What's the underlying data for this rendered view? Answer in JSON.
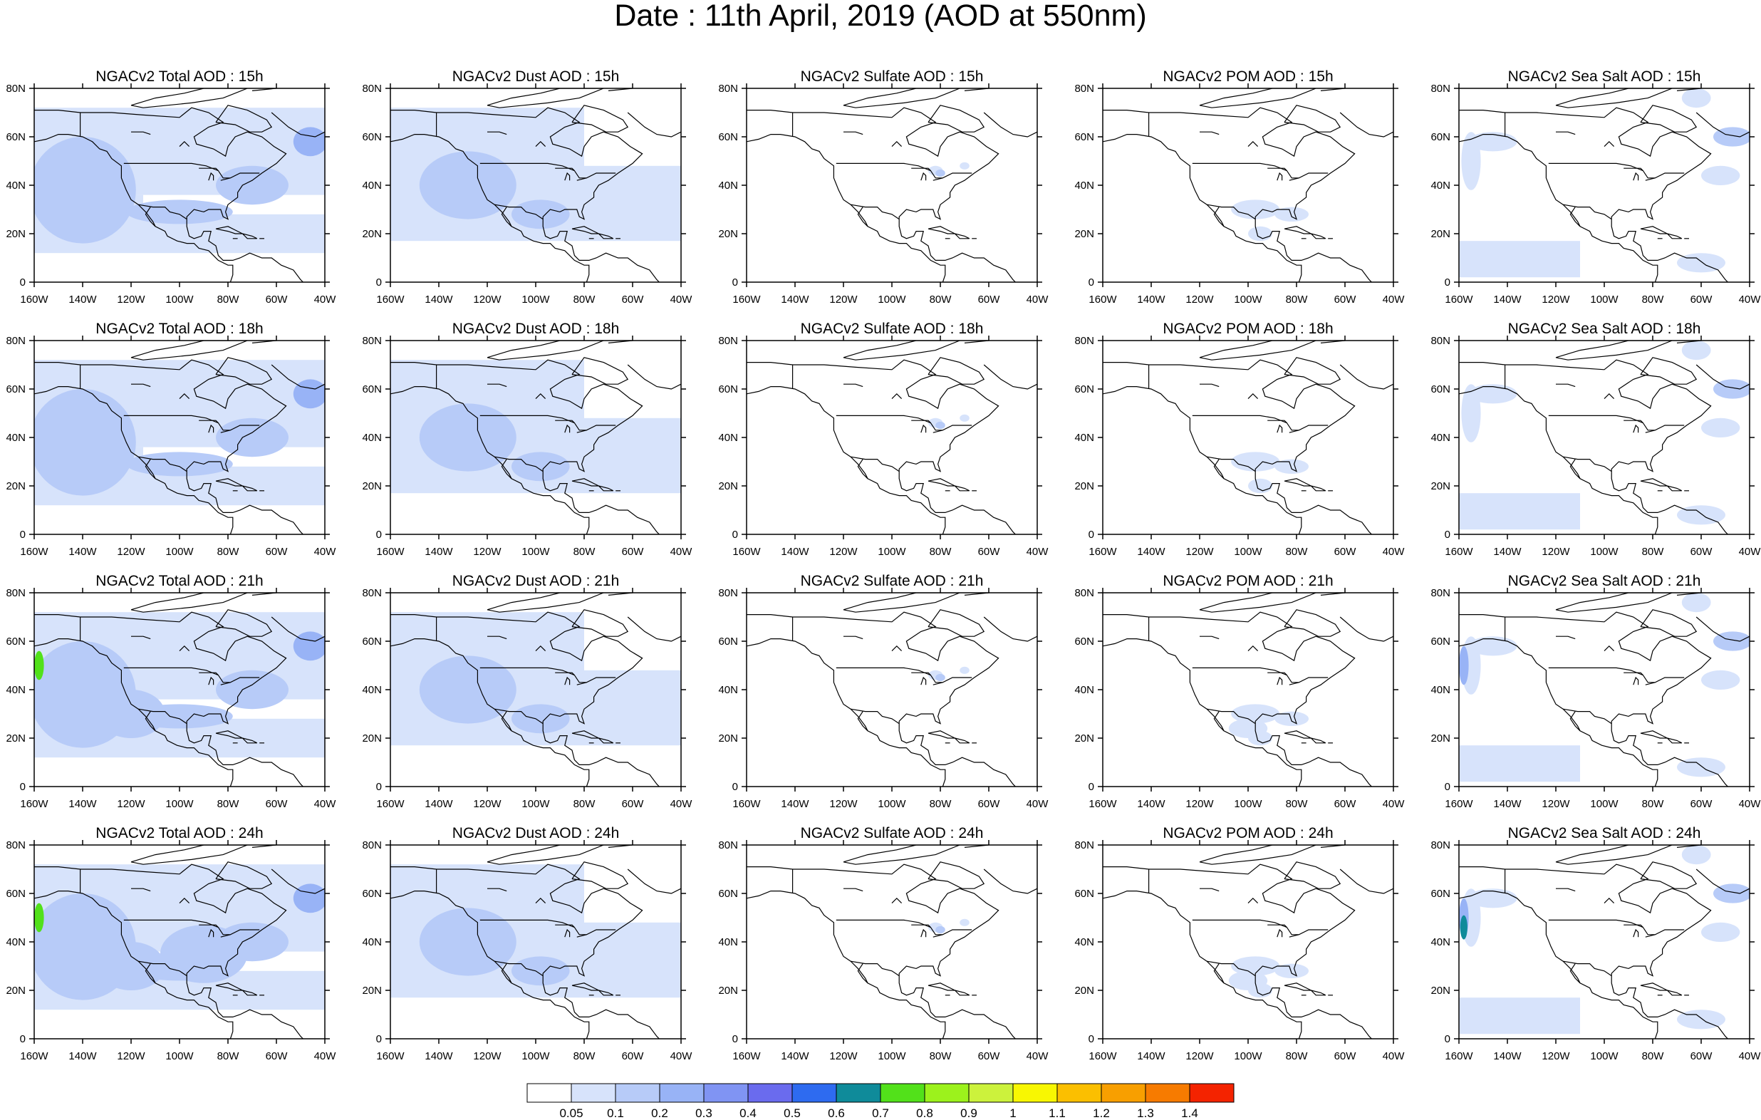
{
  "title": "Date : 11th April, 2019 (AOD at 550nm)",
  "chart_data": {
    "type": "heatmap",
    "x_ticks": [
      "160W",
      "140W",
      "120W",
      "100W",
      "80W",
      "60W",
      "40W"
    ],
    "y_ticks": [
      "0",
      "20N",
      "40N",
      "60N",
      "80N"
    ],
    "xlim": [
      -160,
      -40
    ],
    "ylim": [
      0,
      80
    ],
    "colorbar": {
      "labels": [
        "0.05",
        "0.1",
        "0.2",
        "0.3",
        "0.4",
        "0.5",
        "0.6",
        "0.7",
        "0.8",
        "0.9",
        "1",
        "1.1",
        "1.2",
        "1.3",
        "1.4"
      ],
      "colors": [
        "#ffffff",
        "#d7e3fb",
        "#b7cbf8",
        "#98b3f6",
        "#8094f3",
        "#6a6bee",
        "#2e6bf0",
        "#0f8b9a",
        "#52e11a",
        "#9cf21c",
        "#ccf23c",
        "#f8f702",
        "#fbbf00",
        "#f89f00",
        "#f77b00",
        "#f42300"
      ]
    },
    "panels": [
      {
        "title": "NGACv2 Total AOD : 15h",
        "kind": "total",
        "hour": 15
      },
      {
        "title": "NGACv2 Dust AOD : 15h",
        "kind": "dust",
        "hour": 15
      },
      {
        "title": "NGACv2 Sulfate AOD : 15h",
        "kind": "sulfate",
        "hour": 15
      },
      {
        "title": "NGACv2 POM AOD : 15h",
        "kind": "pom",
        "hour": 15
      },
      {
        "title": "NGACv2 Sea Salt AOD : 15h",
        "kind": "seasalt",
        "hour": 15
      },
      {
        "title": "NGACv2 Total AOD : 18h",
        "kind": "total",
        "hour": 18
      },
      {
        "title": "NGACv2 Dust AOD : 18h",
        "kind": "dust",
        "hour": 18
      },
      {
        "title": "NGACv2 Sulfate AOD : 18h",
        "kind": "sulfate",
        "hour": 18
      },
      {
        "title": "NGACv2 POM AOD : 18h",
        "kind": "pom",
        "hour": 18
      },
      {
        "title": "NGACv2 Sea Salt AOD : 18h",
        "kind": "seasalt",
        "hour": 18
      },
      {
        "title": "NGACv2 Total AOD : 21h",
        "kind": "total",
        "hour": 21
      },
      {
        "title": "NGACv2 Dust AOD : 21h",
        "kind": "dust",
        "hour": 21
      },
      {
        "title": "NGACv2 Sulfate AOD : 21h",
        "kind": "sulfate",
        "hour": 21
      },
      {
        "title": "NGACv2 POM AOD : 21h",
        "kind": "pom",
        "hour": 21
      },
      {
        "title": "NGACv2 Sea Salt AOD : 21h",
        "kind": "seasalt",
        "hour": 21
      },
      {
        "title": "NGACv2 Total AOD : 24h",
        "kind": "total",
        "hour": 24
      },
      {
        "title": "NGACv2 Dust AOD : 24h",
        "kind": "dust",
        "hour": 24
      },
      {
        "title": "NGACv2 Sulfate AOD : 24h",
        "kind": "sulfate",
        "hour": 24
      },
      {
        "title": "NGACv2 POM AOD : 24h",
        "kind": "pom",
        "hour": 24
      },
      {
        "title": "NGACv2 Sea Salt  AOD : 24h",
        "kind": "seasalt",
        "hour": 24
      }
    ]
  }
}
